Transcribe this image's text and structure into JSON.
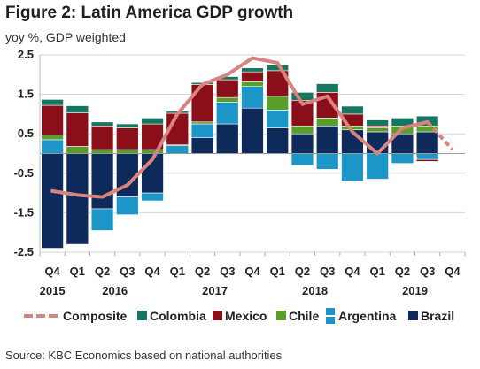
{
  "title": "Figure 2: Latin America GDP growth",
  "subtitle": "yoy %, GDP weighted",
  "source": "Source: KBC Economics based on national authorities",
  "colors": {
    "Brazil": "#0e2a5a",
    "Argentina": "#1c96c8",
    "Chile": "#5a9e2a",
    "Mexico": "#8b0f1a",
    "Colombia": "#17765f",
    "Composite": "#d9837f"
  },
  "chart_data": {
    "type": "bar",
    "stacked": true,
    "ylim": [
      -2.5,
      2.5
    ],
    "yticks": [
      2.5,
      1.5,
      0.5,
      -0.5,
      -1.5,
      -2.5
    ],
    "ytick_labels": [
      "2.5",
      "1.5",
      "0.5",
      "-0.5",
      "-1.5",
      "-2.5"
    ],
    "quarter_labels": [
      "Q4",
      "Q1",
      "Q2",
      "Q3",
      "Q4",
      "Q1",
      "Q2",
      "Q3",
      "Q4",
      "Q1",
      "Q2",
      "Q3",
      "Q4",
      "Q1",
      "Q2",
      "Q3",
      "Q4"
    ],
    "year_labels": [
      {
        "label": "2015",
        "at": 0
      },
      {
        "label": "2016",
        "at": 2.5
      },
      {
        "label": "2017",
        "at": 6.5
      },
      {
        "label": "2018",
        "at": 10.5
      },
      {
        "label": "2019",
        "at": 14.5
      }
    ],
    "categories": [
      "Q4 2015",
      "Q1 2016",
      "Q2 2016",
      "Q3 2016",
      "Q4 2016",
      "Q1 2017",
      "Q2 2017",
      "Q3 2017",
      "Q4 2017",
      "Q1 2018",
      "Q2 2018",
      "Q3 2018",
      "Q4 2018",
      "Q1 2019",
      "Q2 2019",
      "Q3 2019",
      "Q4 2019"
    ],
    "series": [
      {
        "name": "Brazil",
        "values": [
          -2.4,
          -2.3,
          -1.4,
          -1.1,
          -1.0,
          0.0,
          0.4,
          0.75,
          1.15,
          0.65,
          0.5,
          0.7,
          0.6,
          0.55,
          0.5,
          0.55,
          0.0
        ]
      },
      {
        "name": "Argentina",
        "values": [
          0.35,
          0.0,
          -0.55,
          -0.45,
          -0.2,
          0.2,
          0.35,
          0.55,
          0.55,
          0.45,
          -0.3,
          -0.4,
          -0.7,
          -0.65,
          -0.25,
          -0.15,
          0.0
        ]
      },
      {
        "name": "Chile",
        "values": [
          0.12,
          0.18,
          0.1,
          0.1,
          0.1,
          0.02,
          0.05,
          0.12,
          0.12,
          0.35,
          0.2,
          0.2,
          0.1,
          0.1,
          0.2,
          0.15,
          0.0
        ]
      },
      {
        "name": "Mexico",
        "values": [
          0.75,
          0.85,
          0.6,
          0.55,
          0.65,
          0.8,
          0.95,
          0.45,
          0.25,
          0.65,
          0.65,
          0.65,
          0.3,
          0.05,
          -0.0,
          -0.05,
          0.0
        ]
      },
      {
        "name": "Colombia",
        "values": [
          0.15,
          0.18,
          0.1,
          0.1,
          0.15,
          0.05,
          0.05,
          0.08,
          0.1,
          0.15,
          0.2,
          0.22,
          0.2,
          0.15,
          0.2,
          0.25,
          0.0
        ]
      }
    ],
    "composite": {
      "name": "Composite",
      "values": [
        -0.95,
        -1.05,
        -1.1,
        -0.8,
        -0.15,
        1.0,
        1.75,
        2.0,
        2.42,
        2.3,
        1.25,
        1.45,
        0.55,
        0.0,
        0.65,
        0.8,
        0.1
      ]
    },
    "legend": [
      "Composite",
      "Colombia",
      "Mexico",
      "Chile",
      "Argentina",
      "Brazil"
    ],
    "legend_position": "bottom",
    "grid": true
  }
}
